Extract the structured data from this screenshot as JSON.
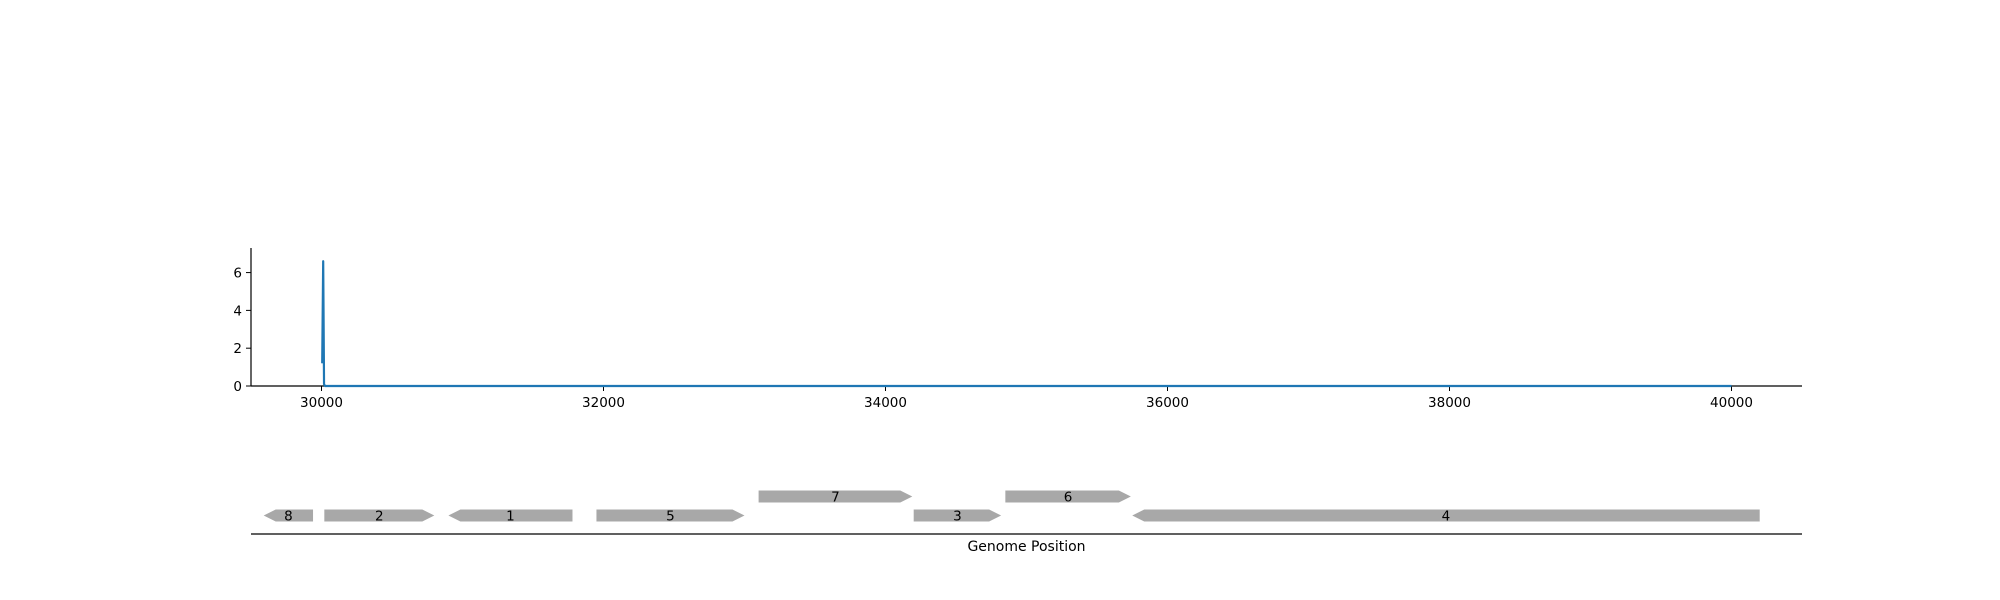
{
  "chart_data": [
    {
      "type": "line",
      "title": "",
      "xlabel": "",
      "ylabel": "",
      "xlim": [
        29500,
        40500
      ],
      "ylim": [
        0,
        7.3
      ],
      "x_ticks": [
        30000,
        32000,
        34000,
        36000,
        38000,
        40000
      ],
      "y_ticks": [
        0,
        2,
        4,
        6
      ],
      "grid": false,
      "series": [
        {
          "color": "#1f77b4",
          "x": [
            30005,
            30012,
            30018,
            30025,
            40000
          ],
          "y": [
            1.2,
            6.6,
            0.1,
            0.0,
            0.0
          ]
        }
      ]
    },
    {
      "type": "gene-track",
      "xlabel": "Genome Position",
      "xlim": [
        29500,
        40500
      ],
      "gene_color": "#a8a8a8",
      "genes": [
        {
          "label": "8",
          "start": 29590,
          "end": 29940,
          "strand": "-",
          "row": 0
        },
        {
          "label": "2",
          "start": 30020,
          "end": 30800,
          "strand": "+",
          "row": 0
        },
        {
          "label": "1",
          "start": 30900,
          "end": 31780,
          "strand": "-",
          "row": 0
        },
        {
          "label": "5",
          "start": 31950,
          "end": 33000,
          "strand": "+",
          "row": 0
        },
        {
          "label": "7",
          "start": 33100,
          "end": 34190,
          "strand": "+",
          "row": 1
        },
        {
          "label": "3",
          "start": 34200,
          "end": 34820,
          "strand": "+",
          "row": 0
        },
        {
          "label": "6",
          "start": 34850,
          "end": 35740,
          "strand": "+",
          "row": 1
        },
        {
          "label": "4",
          "start": 35750,
          "end": 40200,
          "strand": "-",
          "row": 0
        }
      ]
    }
  ]
}
